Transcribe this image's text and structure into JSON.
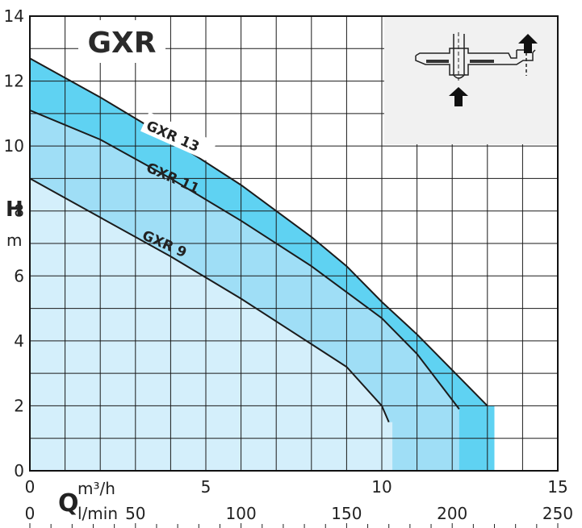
{
  "chart_data": {
    "type": "area",
    "title": "GXR",
    "ylabel": "H",
    "yunit": "m",
    "xlabel": "Q",
    "xunit_primary": "m³/h",
    "xunit_secondary": "l/min",
    "xlim": [
      0,
      15
    ],
    "ylim": [
      0,
      14
    ],
    "x_ticks": [
      "0",
      "5",
      "10",
      "15"
    ],
    "x2_ticks": [
      "0",
      "50",
      "100",
      "150",
      "200",
      "250"
    ],
    "y_ticks": [
      "0",
      "2",
      "4",
      "6",
      "8",
      "10",
      "12",
      "14"
    ],
    "grid": true,
    "series": [
      {
        "name": "GXR 13",
        "x": [
          0,
          2,
          4,
          6,
          8,
          9,
          10,
          11,
          12,
          13
        ],
        "y": [
          12.7,
          11.5,
          10.2,
          8.8,
          7.2,
          6.3,
          5.2,
          4.2,
          3.1,
          2.0
        ],
        "max_flow": 13.2,
        "color": "#5fd2f2"
      },
      {
        "name": "GXR 11",
        "x": [
          0,
          2,
          4,
          6,
          8,
          10,
          11,
          12.2
        ],
        "y": [
          11.1,
          10.2,
          9.0,
          7.7,
          6.3,
          4.7,
          3.6,
          1.9
        ],
        "max_flow": 12.2,
        "color": "#9fdef6"
      },
      {
        "name": "GXR 9",
        "x": [
          0,
          2,
          4,
          6,
          8,
          9,
          10,
          10.2
        ],
        "y": [
          9.0,
          7.8,
          6.6,
          5.3,
          3.9,
          3.2,
          2.0,
          1.5
        ],
        "max_flow": 10.3,
        "color": "#d4effb"
      }
    ]
  }
}
